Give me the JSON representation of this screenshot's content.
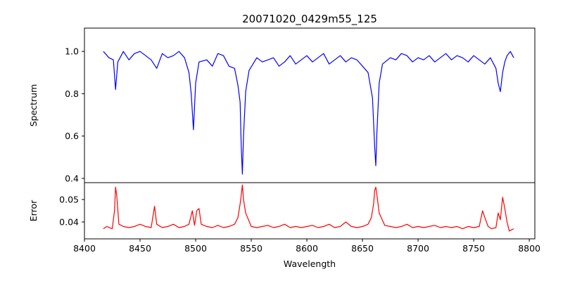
{
  "chart_data": [
    {
      "type": "line",
      "title": "20071020_0429m55_125",
      "xlabel": "",
      "ylabel": "Spectrum",
      "xlim": [
        8400,
        8805
      ],
      "ylim": [
        0.38,
        1.11
      ],
      "yticks": [
        "0.4",
        "0.6",
        "0.8",
        "1.0"
      ],
      "grid": false,
      "series": [
        {
          "color": "#0000ff",
          "x": [
            8417,
            8422,
            8426,
            8428,
            8430,
            8435,
            8440,
            8445,
            8450,
            8455,
            8460,
            8465,
            8470,
            8475,
            8480,
            8485,
            8490,
            8494,
            8496,
            8498,
            8500,
            8503,
            8510,
            8515,
            8520,
            8525,
            8530,
            8535,
            8538,
            8540,
            8541,
            8542,
            8543,
            8545,
            8548,
            8555,
            8560,
            8565,
            8570,
            8575,
            8580,
            8585,
            8590,
            8595,
            8600,
            8605,
            8610,
            8615,
            8620,
            8625,
            8630,
            8635,
            8640,
            8645,
            8650,
            8655,
            8659,
            8661,
            8662,
            8663,
            8665,
            8668,
            8675,
            8680,
            8685,
            8690,
            8695,
            8700,
            8705,
            8710,
            8715,
            8720,
            8725,
            8730,
            8735,
            8740,
            8745,
            8750,
            8755,
            8760,
            8765,
            8770,
            8772,
            8774,
            8776,
            8778,
            8780,
            8783,
            8786
          ],
          "y": [
            1.0,
            0.97,
            0.96,
            0.82,
            0.95,
            1.0,
            0.96,
            0.99,
            1.0,
            0.98,
            0.96,
            0.92,
            0.99,
            0.97,
            0.98,
            1.0,
            0.97,
            0.9,
            0.8,
            0.63,
            0.85,
            0.95,
            0.96,
            0.93,
            0.99,
            0.98,
            0.93,
            0.92,
            0.84,
            0.76,
            0.55,
            0.42,
            0.6,
            0.81,
            0.91,
            0.97,
            0.95,
            0.96,
            0.97,
            0.93,
            0.95,
            0.98,
            0.94,
            0.96,
            0.98,
            0.95,
            0.97,
            0.99,
            0.94,
            0.96,
            0.98,
            0.95,
            0.97,
            0.96,
            0.93,
            0.9,
            0.78,
            0.55,
            0.46,
            0.62,
            0.85,
            0.94,
            0.97,
            0.96,
            0.99,
            0.98,
            0.95,
            0.97,
            0.96,
            0.98,
            0.95,
            0.97,
            0.99,
            0.96,
            0.98,
            0.97,
            0.95,
            0.98,
            0.96,
            0.94,
            0.97,
            0.92,
            0.85,
            0.81,
            0.9,
            0.95,
            0.98,
            1.0,
            0.97
          ]
        }
      ]
    },
    {
      "type": "line",
      "title": "",
      "xlabel": "Wavelength",
      "ylabel": "Error",
      "xlim": [
        8400,
        8805
      ],
      "ylim": [
        0.0325,
        0.0575
      ],
      "xticks": [
        "8400",
        "8450",
        "8500",
        "8550",
        "8600",
        "8650",
        "8700",
        "8750",
        "8800"
      ],
      "yticks": [
        "0.04",
        "0.05"
      ],
      "grid": false,
      "series": [
        {
          "color": "#ff0000",
          "x": [
            8417,
            8420,
            8425,
            8427,
            8428,
            8429,
            8431,
            8435,
            8440,
            8445,
            8450,
            8455,
            8460,
            8463,
            8465,
            8470,
            8475,
            8480,
            8485,
            8490,
            8494,
            8497,
            8499,
            8501,
            8503,
            8505,
            8510,
            8515,
            8520,
            8525,
            8530,
            8535,
            8538,
            8540,
            8541,
            8542,
            8543,
            8545,
            8550,
            8555,
            8560,
            8565,
            8570,
            8575,
            8580,
            8585,
            8590,
            8595,
            8600,
            8605,
            8610,
            8615,
            8620,
            8625,
            8630,
            8635,
            8640,
            8645,
            8650,
            8655,
            8658,
            8660,
            8661,
            8662,
            8663,
            8665,
            8670,
            8675,
            8680,
            8685,
            8690,
            8695,
            8700,
            8705,
            8710,
            8715,
            8720,
            8725,
            8730,
            8735,
            8740,
            8745,
            8750,
            8755,
            8758,
            8760,
            8763,
            8766,
            8770,
            8772,
            8774,
            8776,
            8778,
            8780,
            8782,
            8784,
            8786
          ],
          "y": [
            0.037,
            0.038,
            0.037,
            0.045,
            0.0555,
            0.052,
            0.039,
            0.038,
            0.0375,
            0.038,
            0.039,
            0.038,
            0.0375,
            0.047,
            0.039,
            0.0375,
            0.038,
            0.039,
            0.0375,
            0.038,
            0.039,
            0.045,
            0.0385,
            0.045,
            0.046,
            0.039,
            0.038,
            0.0375,
            0.0385,
            0.0375,
            0.038,
            0.039,
            0.042,
            0.048,
            0.052,
            0.0565,
            0.05,
            0.044,
            0.038,
            0.0375,
            0.038,
            0.0385,
            0.0375,
            0.038,
            0.039,
            0.0375,
            0.038,
            0.0375,
            0.038,
            0.0385,
            0.0375,
            0.038,
            0.039,
            0.0375,
            0.038,
            0.04,
            0.038,
            0.0375,
            0.038,
            0.039,
            0.042,
            0.048,
            0.054,
            0.0555,
            0.052,
            0.044,
            0.0385,
            0.038,
            0.0375,
            0.038,
            0.039,
            0.0375,
            0.038,
            0.0375,
            0.038,
            0.0385,
            0.0375,
            0.038,
            0.0375,
            0.038,
            0.037,
            0.038,
            0.0375,
            0.038,
            0.045,
            0.042,
            0.038,
            0.037,
            0.0375,
            0.044,
            0.041,
            0.051,
            0.046,
            0.04,
            0.036,
            0.0365,
            0.037
          ]
        }
      ]
    }
  ]
}
